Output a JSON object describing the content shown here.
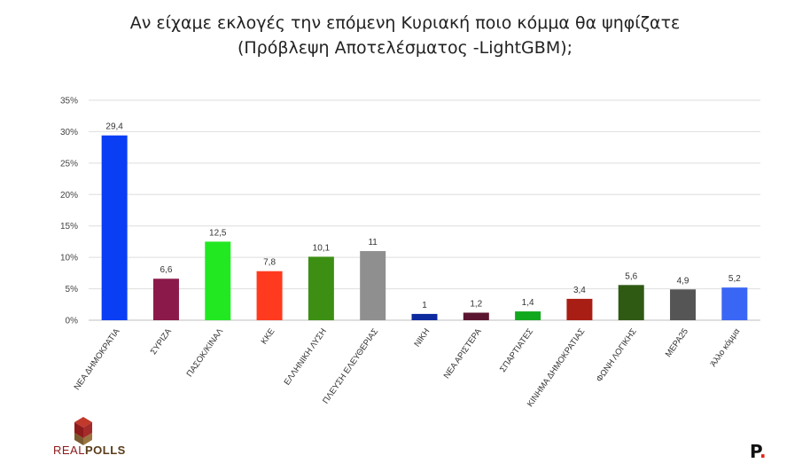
{
  "title_line1": "Αν είχαμε εκλογές την επόμενη Κυριακή ποιο κόμμα θα ψηφίζατε",
  "title_line2": "(Πρόβλεψη Αποτελέσματος -LightGBM);",
  "chart_data": {
    "type": "bar",
    "categories": [
      "ΝΕΑ ΔΗΜΟΚΡΑΤΙΑ",
      "ΣΥΡΙΖΑ",
      "ΠΑΣΟΚ/ΚΙΝΑΛ",
      "ΚΚΕ",
      "ΕΛΛΗΝΙΚΗ ΛΥΣΗ",
      "ΠΛΕΥΣΗ ΕΛΕΥΘΕΡΙΑΣ",
      "ΝΙΚΗ",
      "ΝΕΑ ΑΡΙΣΤΕΡΑ",
      "ΣΠΑΡΤΙΑΤΕΣ",
      "ΚΙΝΗΜΑ ΔΗΜΟΚΡΑΤΙΑΣ",
      "ΦΩΝΗ ΛΟΓΙΚΗΣ",
      "ΜΕΡΑ25",
      "Άλλο κόμμα"
    ],
    "values": [
      29.4,
      6.6,
      12.5,
      7.8,
      10.1,
      11,
      1,
      1.2,
      1.4,
      3.4,
      5.6,
      4.9,
      5.2
    ],
    "value_labels": [
      "29,4",
      "6,6",
      "12,5",
      "7,8",
      "10,1",
      "11",
      "1",
      "1,2",
      "1,4",
      "3,4",
      "5,6",
      "4,9",
      "5,2"
    ],
    "colors": [
      "#0a3ef5",
      "#8b1a4a",
      "#22e822",
      "#ff3a1e",
      "#3d8f14",
      "#8f8f8f",
      "#0d2a9e",
      "#5c1530",
      "#12a81e",
      "#a81e14",
      "#2f5a14",
      "#555555",
      "#3a66f5"
    ],
    "ylim": [
      0,
      35
    ],
    "yticks": [
      0,
      5,
      10,
      15,
      20,
      25,
      30,
      35
    ],
    "ytick_labels": [
      "0%",
      "5%",
      "10%",
      "15%",
      "20%",
      "25%",
      "30%",
      "35%"
    ],
    "grid": true,
    "legend": "none"
  },
  "logos": {
    "left_part1": "REAL",
    "left_part2": "POLLS",
    "right_text": "P",
    "right_dot": "."
  }
}
